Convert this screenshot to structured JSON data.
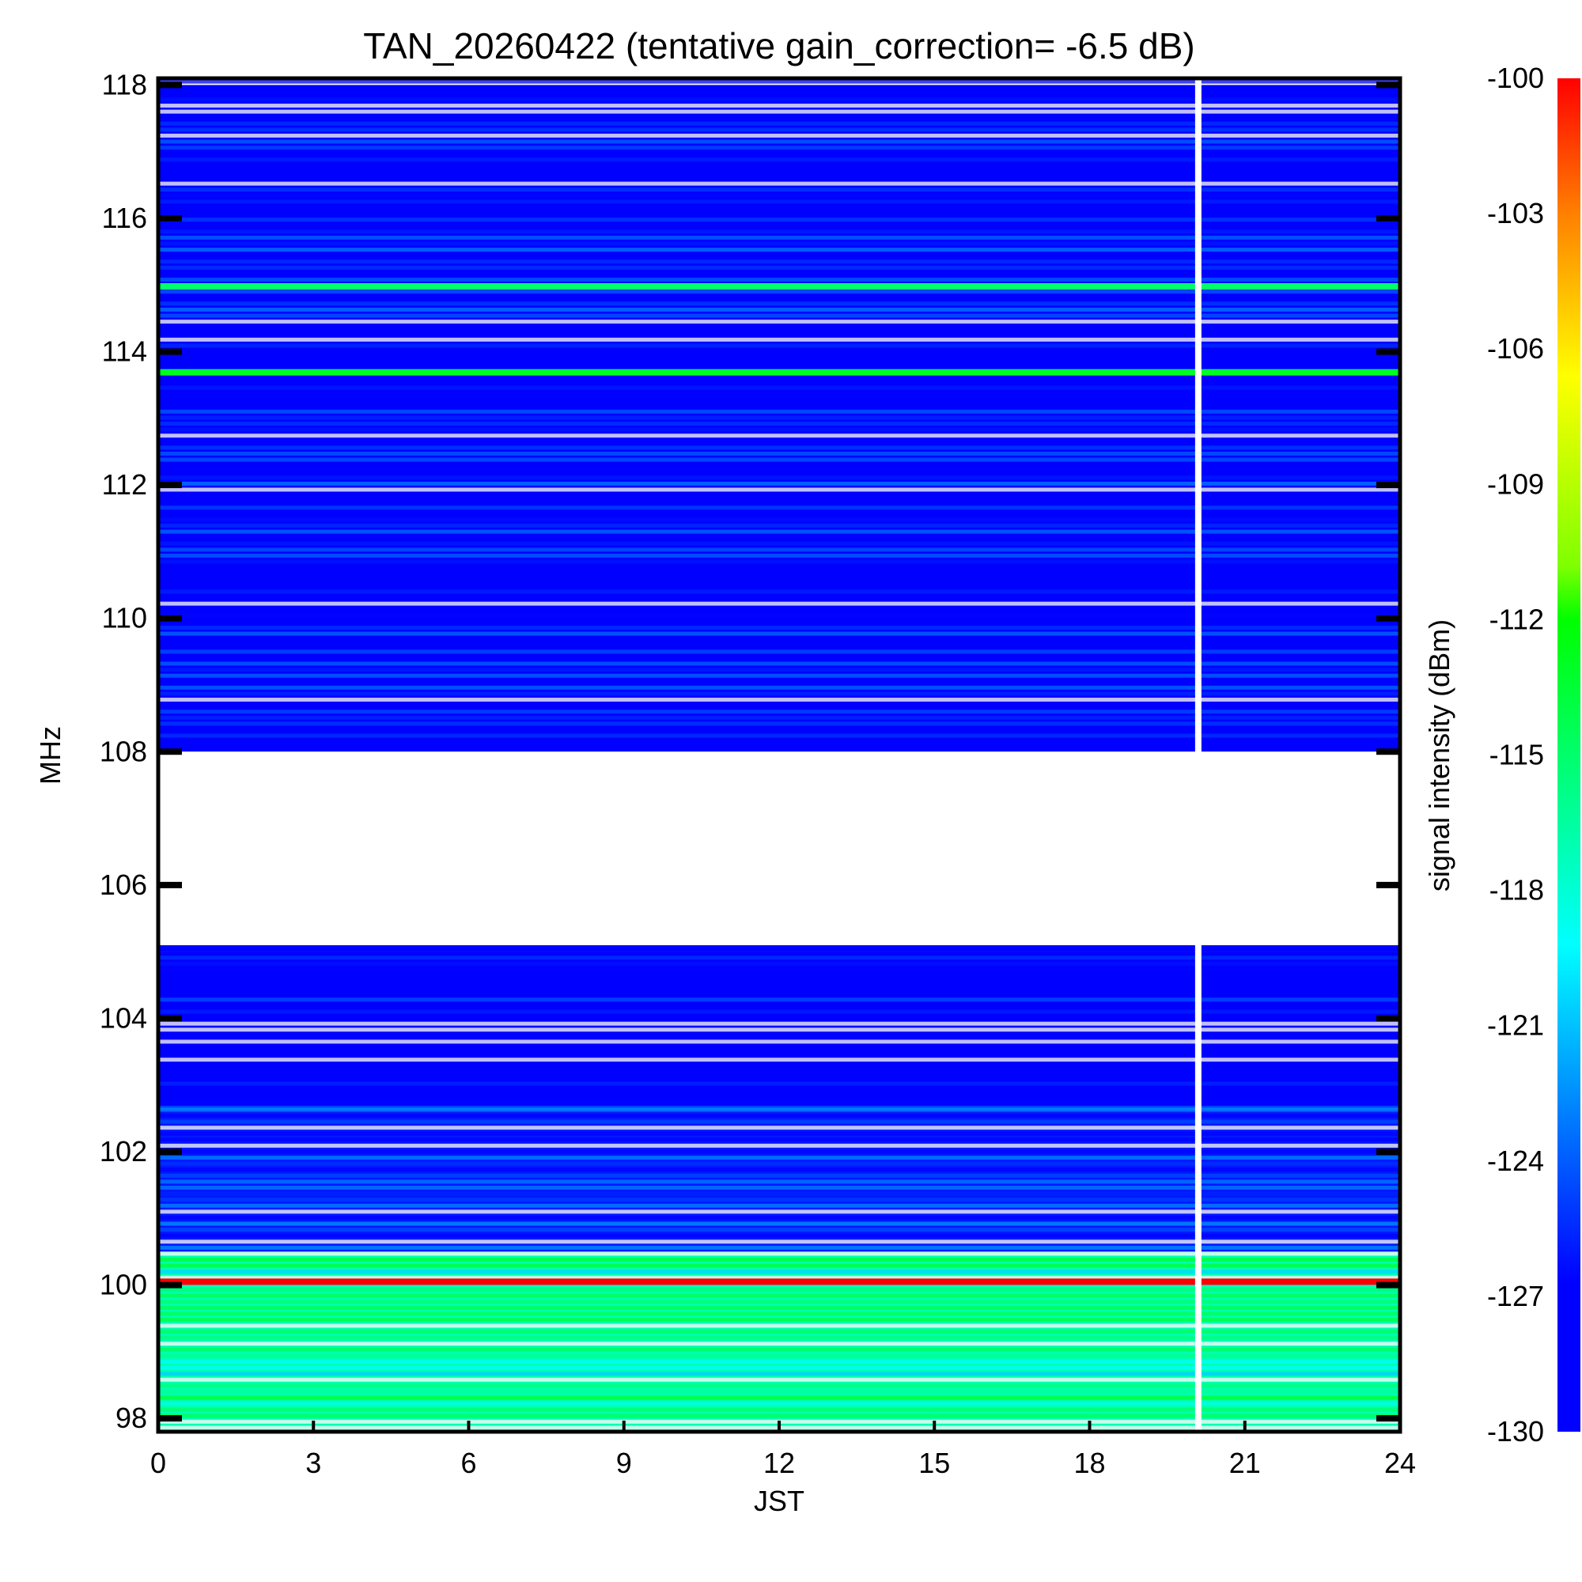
{
  "chart_data": {
    "type": "heatmap",
    "title": "TAN_20260422 (tentative gain_correction= -6.5 dB)",
    "xlabel": "JST",
    "ylabel": "MHz",
    "colorbar_label": "signal intensity (dBm)",
    "xlim": [
      0,
      24
    ],
    "ylim": [
      97.8,
      118.1
    ],
    "x_ticks": [
      0,
      3,
      6,
      9,
      12,
      15,
      18,
      21,
      24
    ],
    "y_ticks": [
      98,
      100,
      102,
      104,
      106,
      108,
      110,
      112,
      114,
      116,
      118
    ],
    "color_range": [
      -130,
      -100
    ],
    "colorbar_ticks": [
      -100,
      -103,
      -106,
      -109,
      -112,
      -115,
      -118,
      -121,
      -124,
      -127,
      -130
    ],
    "colormap": "jet",
    "data_gap_jst": 20.1,
    "notes_bands": [
      {
        "freq_from": 108,
        "freq_to": 118,
        "level_dbm": -127
      },
      {
        "freq_from": 105,
        "freq_to": 108,
        "level_dbm": null
      },
      {
        "freq_from": 102.6,
        "freq_to": 105,
        "level_dbm": -128
      },
      {
        "freq_from": 100.5,
        "freq_to": 102.6,
        "level_dbm": -126
      },
      {
        "freq_from": 97.8,
        "freq_to": 100.5,
        "level_dbm": -117
      }
    ],
    "strong_lines": [
      {
        "freq": 114.98,
        "level_dbm": -115
      },
      {
        "freq": 113.69,
        "level_dbm": -113
      },
      {
        "freq": 105.05,
        "level_dbm": -127
      },
      {
        "freq": 100.05,
        "level_dbm": -100
      }
    ]
  }
}
